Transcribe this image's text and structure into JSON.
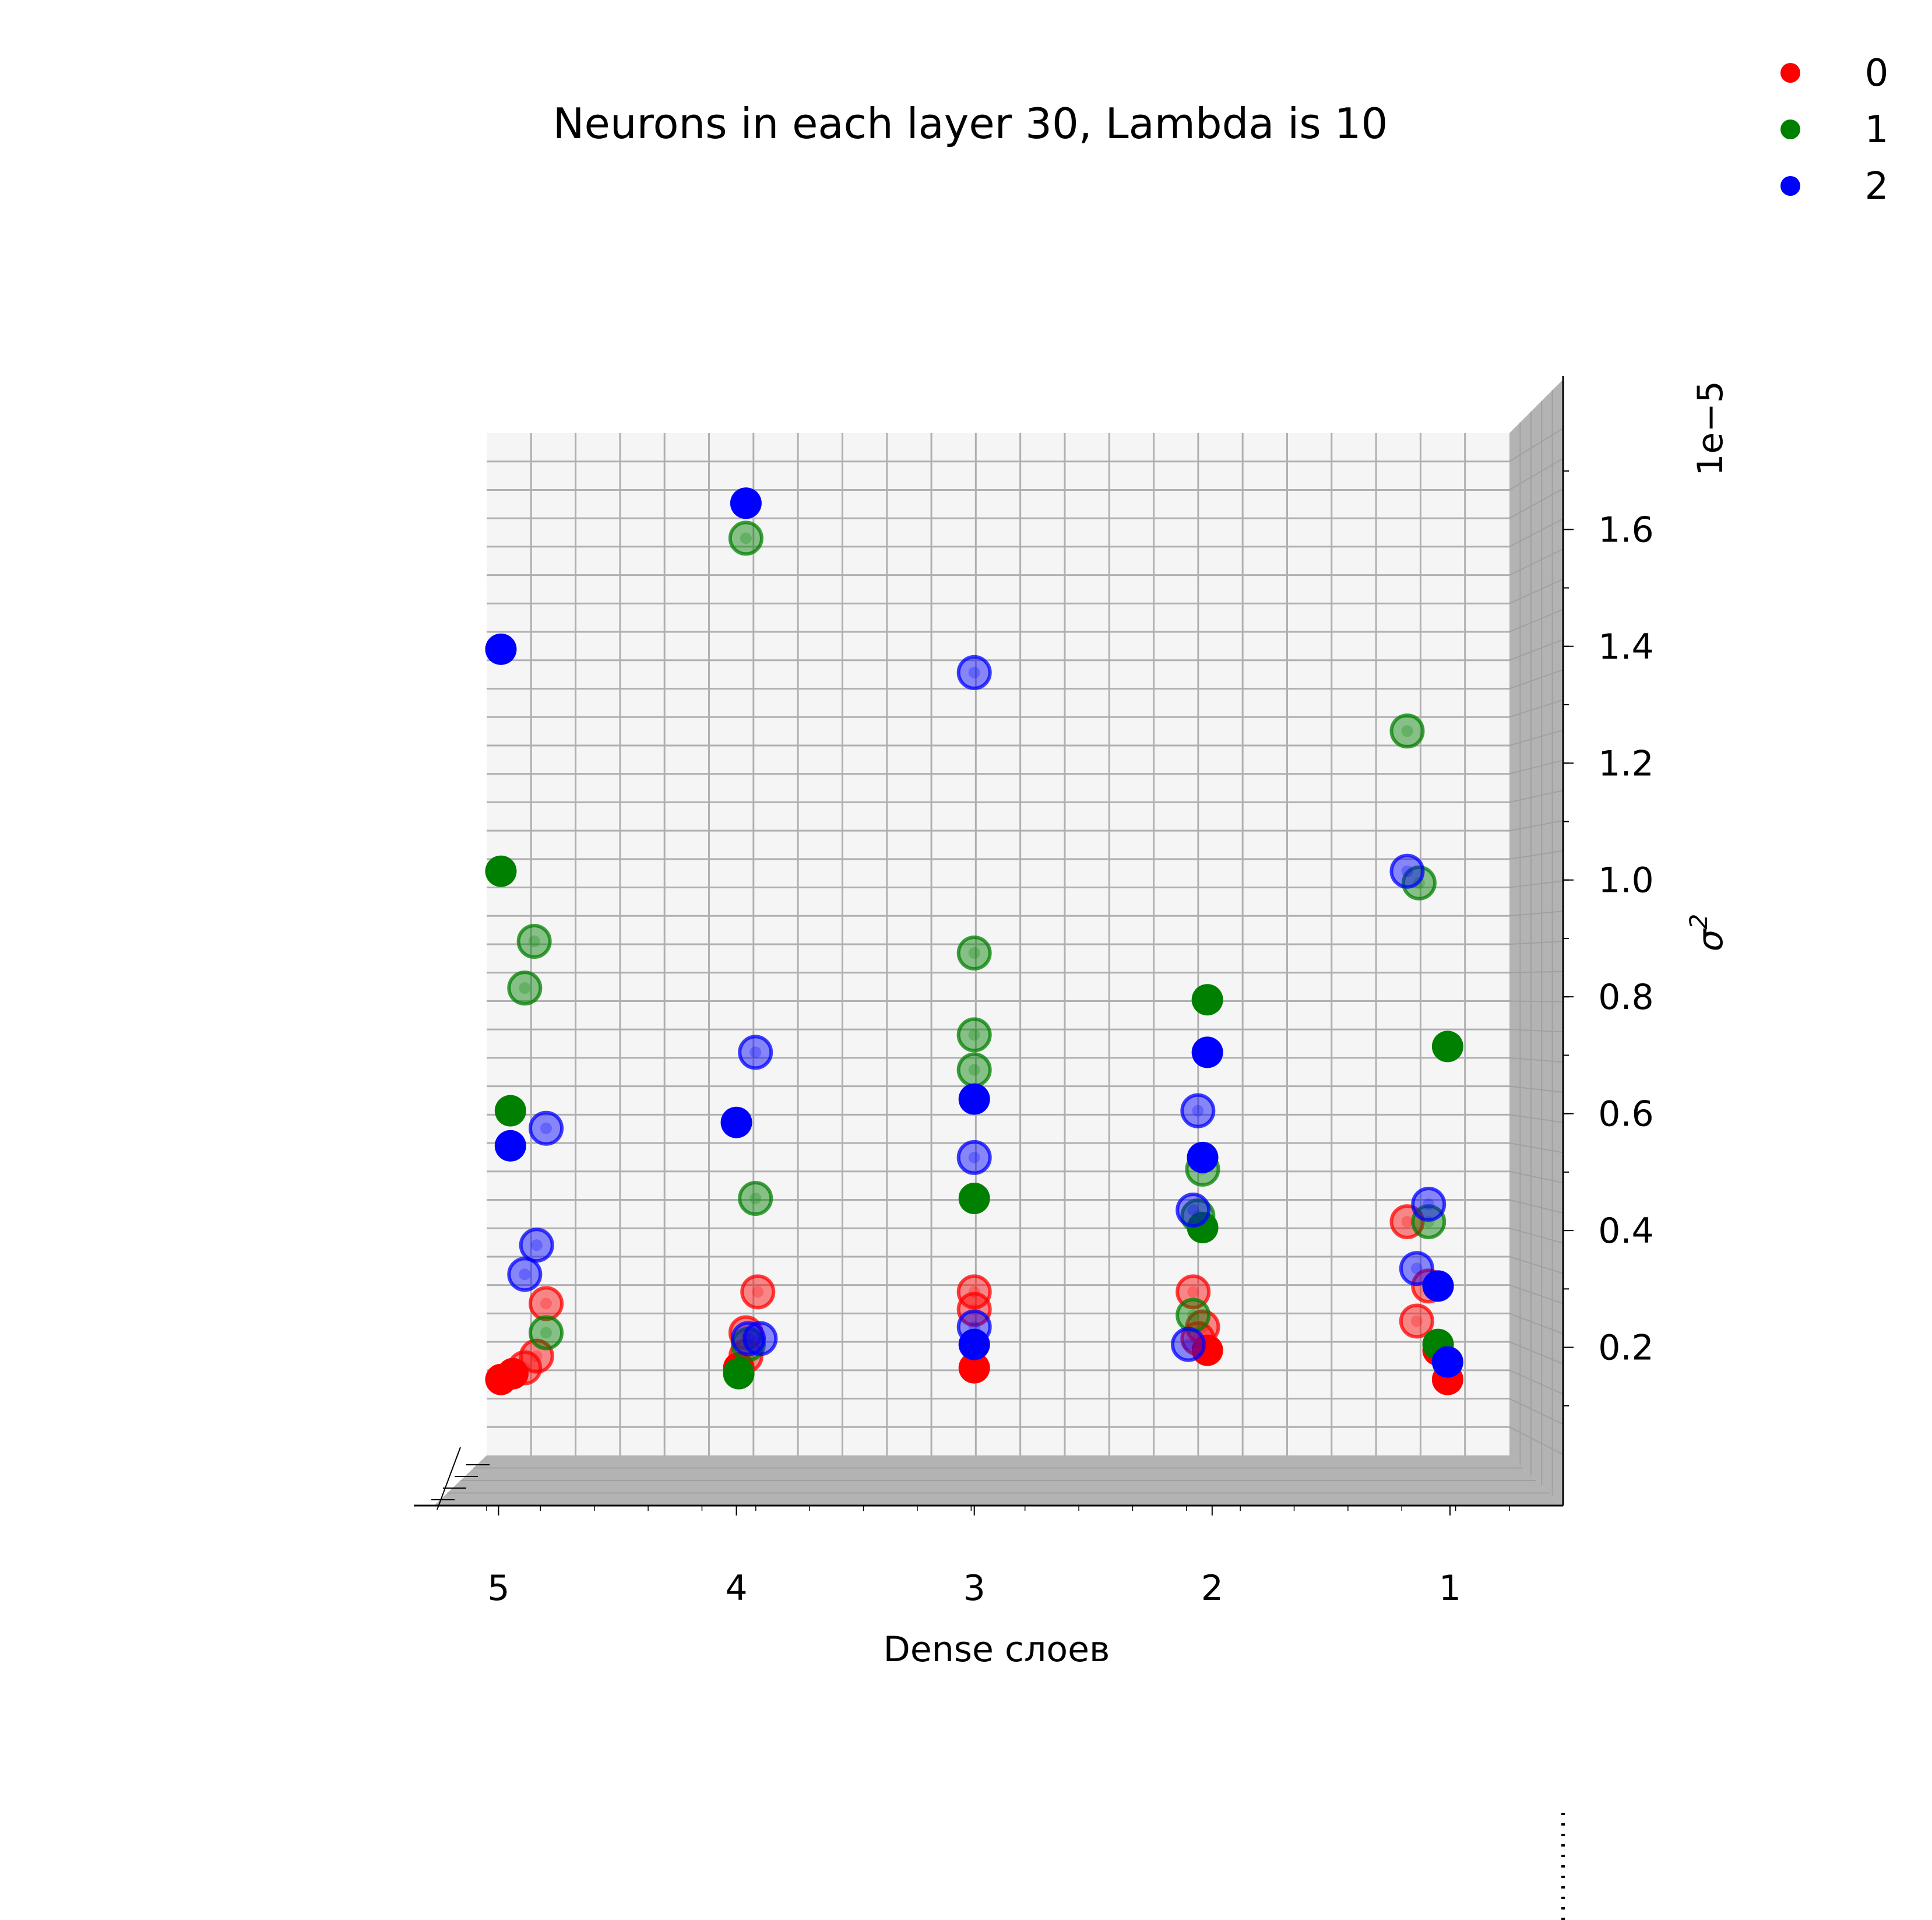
{
  "chart_data": {
    "type": "scatter",
    "title": "Neurons in each layer 30, Lambda is 10",
    "xlabel": "Dense слоев",
    "ylabel": "σ",
    "ylabel_sup": "2",
    "y_offset_label": "1e−5",
    "x_ticks": [
      "5",
      "4",
      "3",
      "2",
      "1"
    ],
    "y_ticks": [
      "0.2",
      "0.4",
      "0.6",
      "0.8",
      "1.0",
      "1.2",
      "1.4",
      "1.6"
    ],
    "ylim": [
      0.0,
      1.75
    ],
    "x_range": [
      5.05,
      0.75
    ],
    "legend_position": "top-right",
    "grid": true,
    "colors": {
      "0": "#ff0000",
      "1": "#008000",
      "2": "#0000ff",
      "pane": "#f2f2f2",
      "floor": "#b0b0b0",
      "grid": "#b0b0b0"
    },
    "series": [
      {
        "name": "0",
        "color": "#ff0000",
        "points": [
          {
            "x": 4.99,
            "y": 0.13,
            "faded": false
          },
          {
            "x": 4.94,
            "y": 0.14,
            "faded": false
          },
          {
            "x": 4.89,
            "y": 0.15,
            "faded": true
          },
          {
            "x": 4.84,
            "y": 0.17,
            "faded": true
          },
          {
            "x": 4.8,
            "y": 0.26,
            "faded": true
          },
          {
            "x": 3.96,
            "y": 0.21,
            "faded": true
          },
          {
            "x": 3.96,
            "y": 0.17,
            "faded": true
          },
          {
            "x": 3.99,
            "y": 0.15,
            "faded": false
          },
          {
            "x": 3.91,
            "y": 0.28,
            "faded": true
          },
          {
            "x": 3.0,
            "y": 0.28,
            "faded": true
          },
          {
            "x": 3.0,
            "y": 0.25,
            "faded": true
          },
          {
            "x": 3.0,
            "y": 0.15,
            "faded": false
          },
          {
            "x": 2.08,
            "y": 0.28,
            "faded": true
          },
          {
            "x": 2.04,
            "y": 0.22,
            "faded": true
          },
          {
            "x": 2.06,
            "y": 0.2,
            "faded": true
          },
          {
            "x": 2.02,
            "y": 0.18,
            "faded": false
          },
          {
            "x": 1.18,
            "y": 0.4,
            "faded": true
          },
          {
            "x": 1.09,
            "y": 0.29,
            "faded": true
          },
          {
            "x": 1.14,
            "y": 0.23,
            "faded": true
          },
          {
            "x": 1.05,
            "y": 0.18,
            "faded": false
          },
          {
            "x": 1.01,
            "y": 0.13,
            "faded": false
          }
        ]
      },
      {
        "name": "1",
        "color": "#008000",
        "points": [
          {
            "x": 4.99,
            "y": 1.0,
            "faded": false
          },
          {
            "x": 4.85,
            "y": 0.88,
            "faded": true
          },
          {
            "x": 4.89,
            "y": 0.8,
            "faded": true
          },
          {
            "x": 4.95,
            "y": 0.59,
            "faded": false
          },
          {
            "x": 4.8,
            "y": 0.21,
            "faded": true
          },
          {
            "x": 3.96,
            "y": 1.57,
            "faded": true
          },
          {
            "x": 3.92,
            "y": 0.44,
            "faded": true
          },
          {
            "x": 3.95,
            "y": 0.19,
            "faded": true
          },
          {
            "x": 3.99,
            "y": 0.14,
            "faded": false
          },
          {
            "x": 3.0,
            "y": 0.86,
            "faded": true
          },
          {
            "x": 3.0,
            "y": 0.72,
            "faded": true
          },
          {
            "x": 3.0,
            "y": 0.66,
            "faded": true
          },
          {
            "x": 3.0,
            "y": 0.44,
            "faded": false
          },
          {
            "x": 2.02,
            "y": 0.78,
            "faded": false
          },
          {
            "x": 2.04,
            "y": 0.49,
            "faded": true
          },
          {
            "x": 2.06,
            "y": 0.41,
            "faded": true
          },
          {
            "x": 2.04,
            "y": 0.39,
            "faded": false
          },
          {
            "x": 2.08,
            "y": 0.24,
            "faded": true
          },
          {
            "x": 1.18,
            "y": 1.24,
            "faded": true
          },
          {
            "x": 1.13,
            "y": 0.98,
            "faded": true
          },
          {
            "x": 1.01,
            "y": 0.7,
            "faded": false
          },
          {
            "x": 1.09,
            "y": 0.4,
            "faded": true
          },
          {
            "x": 1.05,
            "y": 0.19,
            "faded": false
          }
        ]
      },
      {
        "name": "2",
        "color": "#0000ff",
        "points": [
          {
            "x": 4.99,
            "y": 1.38,
            "faded": false
          },
          {
            "x": 4.8,
            "y": 0.56,
            "faded": true
          },
          {
            "x": 4.95,
            "y": 0.53,
            "faded": false
          },
          {
            "x": 4.84,
            "y": 0.36,
            "faded": true
          },
          {
            "x": 4.89,
            "y": 0.31,
            "faded": true
          },
          {
            "x": 3.96,
            "y": 1.63,
            "faded": false
          },
          {
            "x": 3.92,
            "y": 0.69,
            "faded": true
          },
          {
            "x": 4.0,
            "y": 0.57,
            "faded": false
          },
          {
            "x": 3.95,
            "y": 0.2,
            "faded": true
          },
          {
            "x": 3.9,
            "y": 0.2,
            "faded": true
          },
          {
            "x": 3.0,
            "y": 1.34,
            "faded": true
          },
          {
            "x": 3.0,
            "y": 0.61,
            "faded": false
          },
          {
            "x": 3.0,
            "y": 0.51,
            "faded": true
          },
          {
            "x": 3.0,
            "y": 0.22,
            "faded": true
          },
          {
            "x": 3.0,
            "y": 0.19,
            "faded": false
          },
          {
            "x": 2.02,
            "y": 0.69,
            "faded": false
          },
          {
            "x": 2.06,
            "y": 0.59,
            "faded": true
          },
          {
            "x": 2.04,
            "y": 0.51,
            "faded": false
          },
          {
            "x": 2.08,
            "y": 0.42,
            "faded": true
          },
          {
            "x": 2.1,
            "y": 0.19,
            "faded": true
          },
          {
            "x": 1.18,
            "y": 1.0,
            "faded": true
          },
          {
            "x": 1.09,
            "y": 0.43,
            "faded": true
          },
          {
            "x": 1.14,
            "y": 0.32,
            "faded": true
          },
          {
            "x": 1.05,
            "y": 0.29,
            "faded": false
          },
          {
            "x": 1.01,
            "y": 0.16,
            "faded": false
          }
        ]
      }
    ]
  }
}
